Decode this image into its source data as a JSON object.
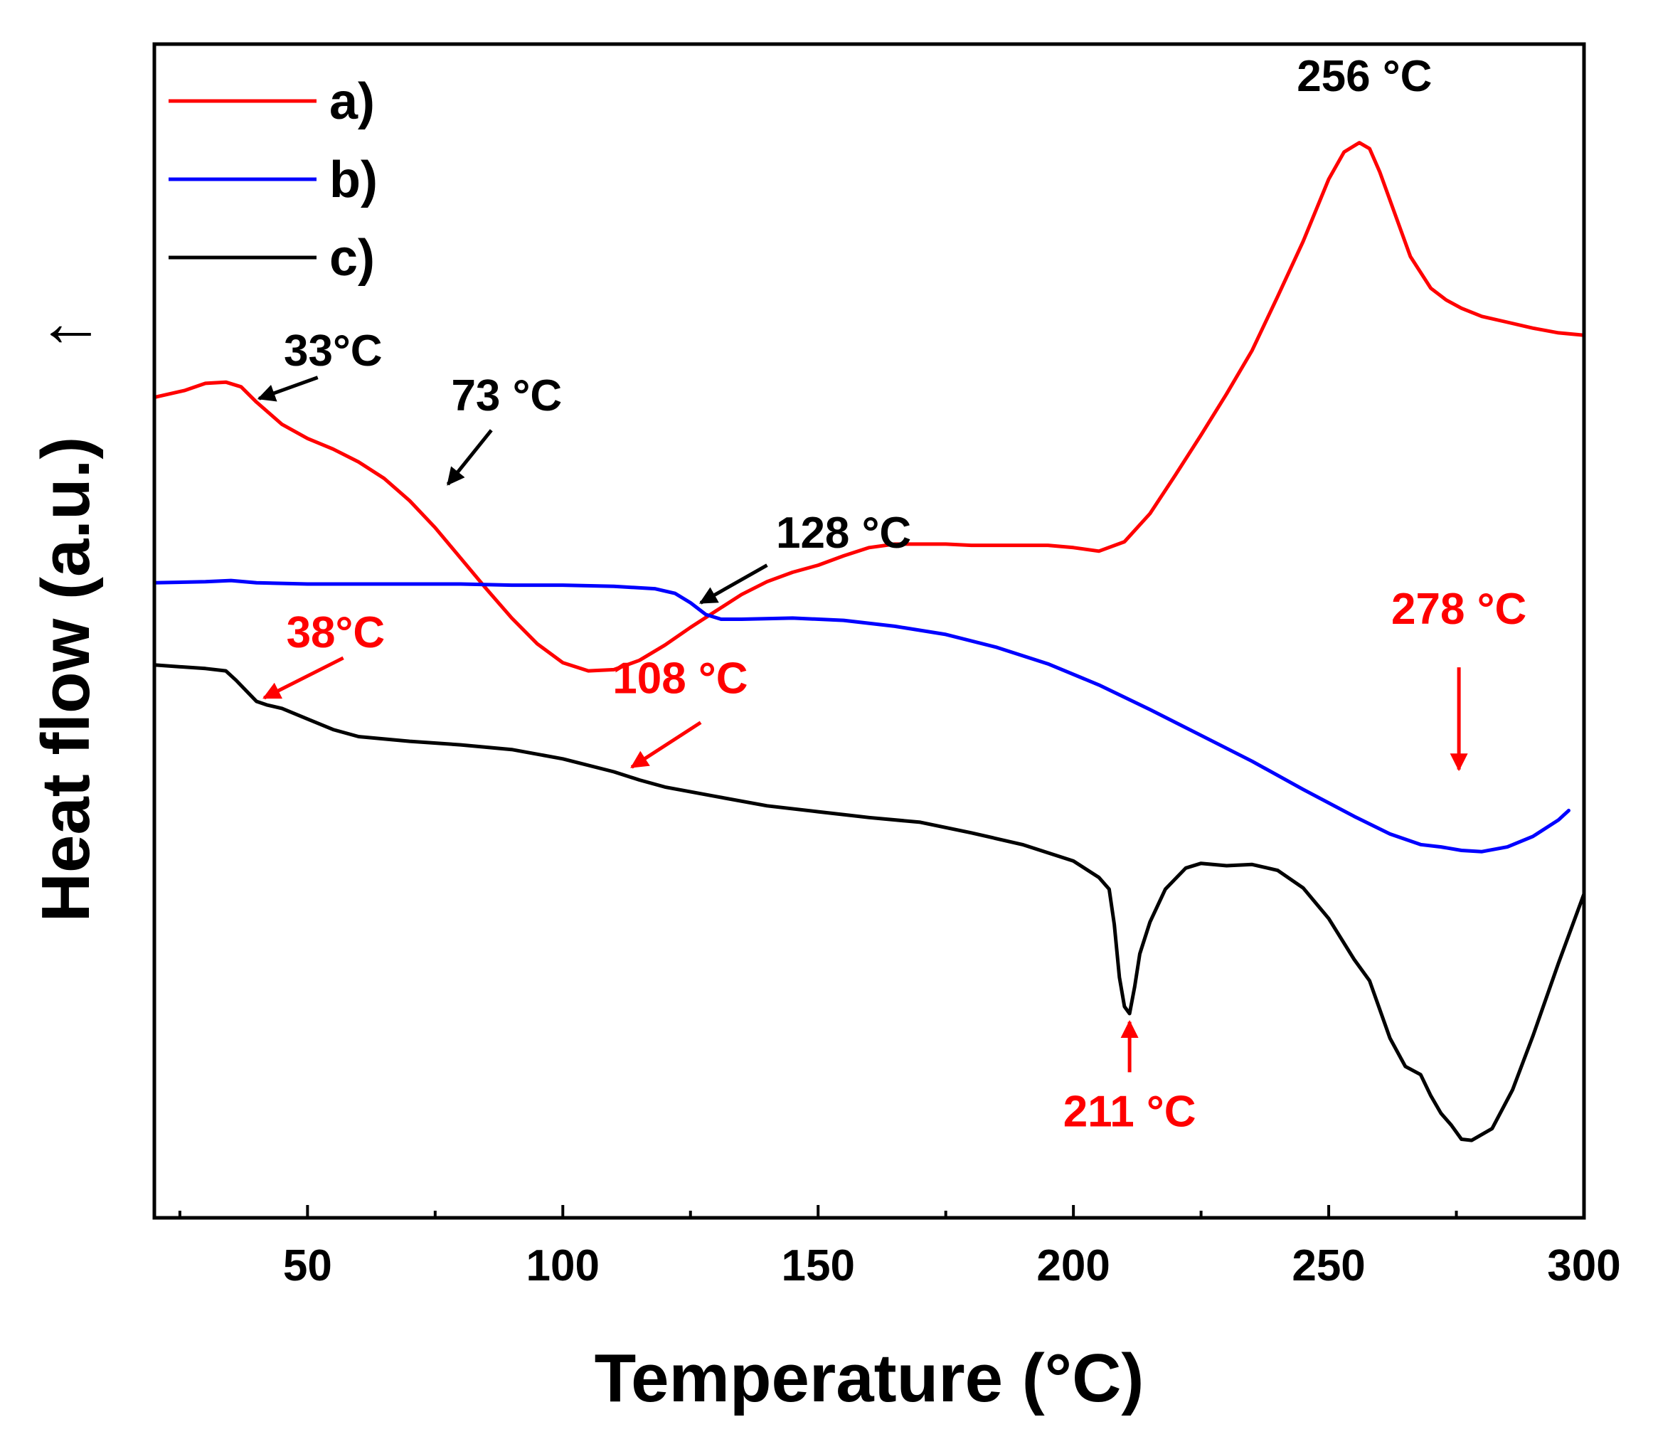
{
  "chart_data": {
    "type": "line",
    "title": "",
    "xlabel": "Temperature (°C)",
    "ylabel": "Heat flow (a.u.)",
    "ylabel_arrow": "↑",
    "xlim": [
      20,
      300
    ],
    "ylim": [
      0,
      100
    ],
    "xticks": [
      50,
      100,
      150,
      200,
      250,
      300
    ],
    "xtick_labels": [
      "50",
      "100",
      "150",
      "200",
      "250",
      "300"
    ],
    "xminor": [
      25,
      75,
      125,
      175,
      225,
      275
    ],
    "yticks_shown": false,
    "grid": false,
    "legend": {
      "position": "top-left",
      "entries": [
        {
          "label": "a)",
          "color": "#ff0000"
        },
        {
          "label": "b)",
          "color": "#0000ff"
        },
        {
          "label": "c)",
          "color": "#000000"
        }
      ]
    },
    "series": [
      {
        "name": "a)",
        "color": "#ff0000",
        "x": [
          20,
          26,
          30,
          34,
          37,
          40,
          45,
          50,
          55,
          60,
          65,
          70,
          75,
          80,
          85,
          90,
          95,
          100,
          105,
          110,
          115,
          120,
          125,
          130,
          135,
          140,
          145,
          150,
          155,
          160,
          165,
          170,
          175,
          180,
          185,
          190,
          195,
          200,
          205,
          210,
          215,
          220,
          225,
          230,
          235,
          240,
          245,
          250,
          253,
          256,
          258,
          260,
          263,
          266,
          270,
          273,
          276,
          280,
          285,
          290,
          295,
          300
        ],
        "y": [
          69.9,
          70.5,
          71.1,
          71.2,
          70.8,
          69.5,
          67.6,
          66.4,
          65.5,
          64.4,
          63.0,
          61.1,
          58.8,
          56.2,
          53.6,
          51.1,
          48.9,
          47.3,
          46.6,
          46.7,
          47.5,
          48.8,
          50.3,
          51.7,
          53.1,
          54.2,
          55.0,
          55.6,
          56.4,
          57.1,
          57.4,
          57.4,
          57.4,
          57.3,
          57.3,
          57.3,
          57.3,
          57.1,
          56.8,
          57.6,
          60.0,
          63.3,
          66.7,
          70.2,
          73.9,
          78.5,
          83.2,
          88.5,
          90.8,
          91.6,
          91.1,
          89.1,
          85.5,
          81.9,
          79.2,
          78.2,
          77.5,
          76.8,
          76.3,
          75.8,
          75.4,
          75.2
        ]
      },
      {
        "name": "b)",
        "color": "#0000ff",
        "x": [
          20,
          30,
          35,
          40,
          50,
          60,
          70,
          80,
          90,
          100,
          110,
          118,
          122,
          125,
          128,
          131,
          135,
          145,
          155,
          165,
          175,
          185,
          195,
          205,
          215,
          225,
          235,
          245,
          255,
          262,
          268,
          272,
          276,
          280,
          285,
          290,
          295,
          297
        ],
        "y": [
          54.1,
          54.2,
          54.3,
          54.1,
          54.0,
          54.0,
          54.0,
          54.0,
          53.9,
          53.9,
          53.8,
          53.6,
          53.2,
          52.4,
          51.4,
          51.0,
          51.0,
          51.1,
          50.9,
          50.4,
          49.7,
          48.6,
          47.2,
          45.4,
          43.3,
          41.1,
          38.9,
          36.5,
          34.2,
          32.7,
          31.8,
          31.6,
          31.3,
          31.2,
          31.6,
          32.5,
          33.9,
          34.7
        ]
      },
      {
        "name": "c)",
        "color": "#000000",
        "x": [
          20,
          30,
          34,
          36,
          38,
          40,
          42,
          45,
          50,
          55,
          60,
          70,
          80,
          90,
          100,
          110,
          115,
          120,
          125,
          130,
          140,
          150,
          160,
          170,
          180,
          190,
          200,
          205,
          207,
          208,
          209,
          210,
          211,
          212,
          213,
          215,
          218,
          222,
          225,
          230,
          235,
          240,
          245,
          250,
          255,
          258,
          262,
          265,
          268,
          270,
          272,
          274,
          276,
          278,
          282,
          286,
          290,
          295,
          300
        ],
        "y": [
          47.1,
          46.8,
          46.6,
          45.8,
          44.9,
          44.0,
          43.7,
          43.4,
          42.5,
          41.6,
          41.0,
          40.6,
          40.3,
          39.9,
          39.1,
          38.0,
          37.3,
          36.7,
          36.3,
          35.9,
          35.1,
          34.6,
          34.1,
          33.7,
          32.8,
          31.8,
          30.4,
          29.0,
          28.0,
          25.0,
          20.5,
          18.0,
          17.4,
          19.7,
          22.5,
          25.2,
          28.0,
          29.8,
          30.2,
          30.0,
          30.1,
          29.6,
          28.1,
          25.5,
          22.0,
          20.2,
          15.3,
          12.9,
          12.2,
          10.4,
          8.9,
          7.9,
          6.7,
          6.6,
          7.6,
          10.9,
          15.5,
          21.7,
          27.6
        ]
      }
    ],
    "annotations": [
      {
        "text": "256 °C",
        "color": "#000000",
        "marker_color": "",
        "x": 257,
        "y": 96.0,
        "arrow": null
      },
      {
        "text": "33°C",
        "color": "#000000",
        "marker_color": "#000000",
        "x": 55,
        "y": 72.6,
        "arrow": {
          "x1": 52,
          "y1": 71.6,
          "x2": 40.5,
          "y2": 69.8
        }
      },
      {
        "text": "73 °C",
        "color": "#000000",
        "marker_color": "#000000",
        "x": 89,
        "y": 68.8,
        "arrow": {
          "x1": 86,
          "y1": 67.1,
          "x2": 77.5,
          "y2": 62.5
        }
      },
      {
        "text": "128 °C",
        "color": "#000000",
        "marker_color": "#000000",
        "x": 155,
        "y": 57.1,
        "arrow": {
          "x1": 140,
          "y1": 55.6,
          "x2": 127,
          "y2": 52.4
        }
      },
      {
        "text": "38°C",
        "color": "#ff0000",
        "marker_color": "#ff0000",
        "x": 55.5,
        "y": 48.6,
        "arrow": {
          "x1": 57,
          "y1": 47.7,
          "x2": 41.5,
          "y2": 44.3
        }
      },
      {
        "text": "108 °C",
        "color": "#ff0000",
        "marker_color": "#ff0000",
        "x": 123,
        "y": 44.7,
        "arrow": {
          "x1": 127,
          "y1": 42.2,
          "x2": 113.5,
          "y2": 38.4
        }
      },
      {
        "text": "278 °C",
        "color": "#ff0000",
        "marker_color": "#ff0000",
        "x": 275.5,
        "y": 50.6,
        "arrow": {
          "x1": 275.5,
          "y1": 46.9,
          "x2": 275.5,
          "y2": 38.2
        }
      },
      {
        "text": "211 °C",
        "color": "#ff0000",
        "marker_color": "#ff0000",
        "x": 211,
        "y": 7.8,
        "arrow": {
          "x1": 211,
          "y1": 12.4,
          "x2": 211,
          "y2": 16.7
        }
      }
    ]
  }
}
